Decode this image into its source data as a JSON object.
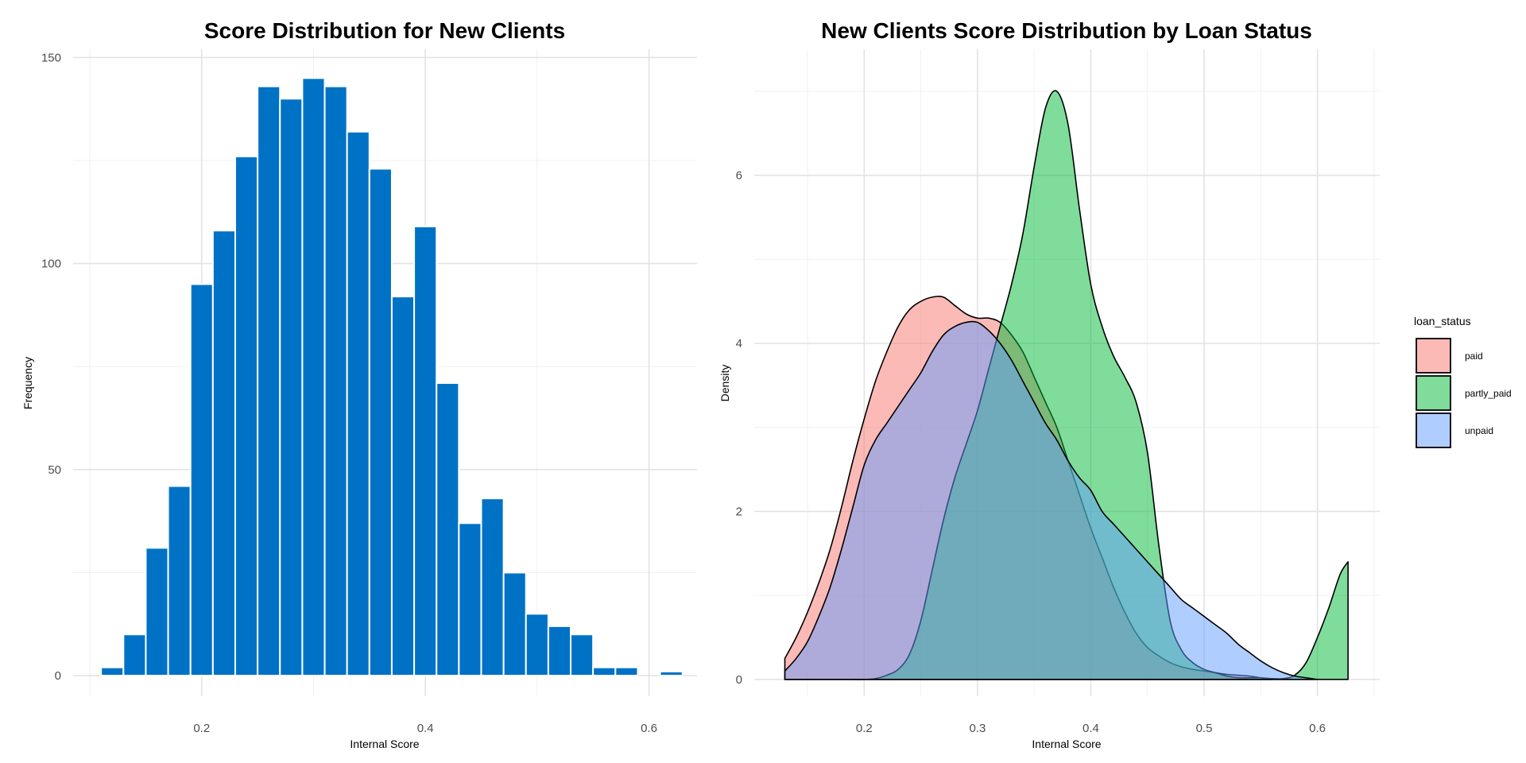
{
  "chart_data": [
    {
      "type": "bar",
      "subtype": "histogram",
      "title": "Score Distribution for New Clients",
      "xlabel": "Internal Score",
      "ylabel": "Frequency",
      "xlim": [
        0.085,
        0.643
      ],
      "ylim": [
        -5,
        152
      ],
      "xticks": [
        0.2,
        0.4,
        0.6
      ],
      "xtick_labels": [
        "0.2",
        "0.4",
        "0.6"
      ],
      "yticks": [
        0,
        50,
        100,
        150
      ],
      "ytick_labels": [
        "0",
        "50",
        "100",
        "150"
      ],
      "bin_width": 0.02,
      "bin_centers": [
        0.12,
        0.14,
        0.16,
        0.18,
        0.2,
        0.22,
        0.24,
        0.26,
        0.28,
        0.3,
        0.32,
        0.34,
        0.36,
        0.38,
        0.4,
        0.42,
        0.44,
        0.46,
        0.48,
        0.5,
        0.52,
        0.54,
        0.56,
        0.58,
        0.6,
        0.62
      ],
      "values": [
        2,
        10,
        31,
        46,
        95,
        108,
        126,
        143,
        140,
        145,
        143,
        132,
        123,
        92,
        109,
        71,
        37,
        43,
        25,
        15,
        12,
        10,
        2,
        2,
        0,
        1
      ],
      "grid": true,
      "colors": {
        "bar": "#0072C6",
        "edge": "#ffffff"
      }
    },
    {
      "type": "area",
      "subtype": "density",
      "title": "New Clients Score Distribution by Loan Status",
      "xlabel": "Internal Score",
      "ylabel": "Density",
      "xlim": [
        0.103,
        0.655
      ],
      "ylim": [
        -0.2,
        7.5
      ],
      "xticks": [
        0.2,
        0.3,
        0.4,
        0.5,
        0.6
      ],
      "xtick_labels": [
        "0.2",
        "0.3",
        "0.4",
        "0.5",
        "0.6"
      ],
      "yticks": [
        0,
        2,
        4,
        6
      ],
      "ytick_labels": [
        "0",
        "2",
        "4",
        "6"
      ],
      "legend_title": "loan_status",
      "legend_position": "right",
      "grid": true,
      "series": [
        {
          "name": "paid",
          "color": "#F8766D",
          "x": [
            0.13,
            0.14,
            0.15,
            0.16,
            0.17,
            0.18,
            0.19,
            0.2,
            0.21,
            0.22,
            0.23,
            0.24,
            0.25,
            0.26,
            0.27,
            0.28,
            0.29,
            0.3,
            0.31,
            0.32,
            0.33,
            0.34,
            0.35,
            0.36,
            0.37,
            0.38,
            0.39,
            0.4,
            0.41,
            0.42,
            0.43,
            0.44,
            0.45,
            0.46,
            0.47,
            0.48,
            0.49,
            0.5,
            0.51,
            0.52,
            0.53,
            0.54,
            0.55,
            0.56
          ],
          "y": [
            0.25,
            0.5,
            0.8,
            1.15,
            1.55,
            2.05,
            2.6,
            3.1,
            3.55,
            3.9,
            4.2,
            4.4,
            4.5,
            4.55,
            4.55,
            4.45,
            4.35,
            4.3,
            4.3,
            4.25,
            4.1,
            3.9,
            3.6,
            3.3,
            3.0,
            2.6,
            2.2,
            1.8,
            1.45,
            1.1,
            0.8,
            0.55,
            0.38,
            0.28,
            0.2,
            0.15,
            0.12,
            0.1,
            0.08,
            0.06,
            0.05,
            0.04,
            0.02,
            0.0
          ]
        },
        {
          "name": "partly_paid",
          "color": "#00BA38",
          "x": [
            0.13,
            0.14,
            0.15,
            0.16,
            0.17,
            0.18,
            0.19,
            0.2,
            0.21,
            0.22,
            0.23,
            0.24,
            0.25,
            0.26,
            0.27,
            0.28,
            0.29,
            0.3,
            0.31,
            0.32,
            0.33,
            0.34,
            0.35,
            0.36,
            0.37,
            0.38,
            0.39,
            0.4,
            0.41,
            0.42,
            0.43,
            0.44,
            0.45,
            0.46,
            0.47,
            0.48,
            0.49,
            0.5,
            0.51,
            0.52,
            0.53,
            0.54,
            0.55,
            0.56,
            0.57,
            0.58,
            0.59,
            0.6,
            0.61,
            0.62,
            0.627
          ],
          "y": [
            0,
            0,
            0,
            0,
            0,
            0,
            0,
            0,
            0.01,
            0.05,
            0.12,
            0.3,
            0.7,
            1.3,
            1.9,
            2.4,
            2.8,
            3.2,
            3.7,
            4.2,
            4.7,
            5.3,
            6.1,
            6.8,
            7.0,
            6.6,
            5.6,
            4.7,
            4.2,
            3.85,
            3.6,
            3.3,
            2.7,
            1.6,
            0.7,
            0.35,
            0.2,
            0.12,
            0.08,
            0.04,
            0.02,
            0.02,
            0.02,
            0.01,
            0.01,
            0.05,
            0.2,
            0.5,
            0.85,
            1.25,
            1.4
          ]
        },
        {
          "name": "unpaid",
          "color": "#619CFF",
          "x": [
            0.13,
            0.14,
            0.15,
            0.16,
            0.17,
            0.18,
            0.19,
            0.2,
            0.21,
            0.22,
            0.23,
            0.24,
            0.25,
            0.26,
            0.27,
            0.28,
            0.29,
            0.3,
            0.31,
            0.32,
            0.33,
            0.34,
            0.35,
            0.36,
            0.37,
            0.38,
            0.39,
            0.4,
            0.41,
            0.42,
            0.43,
            0.44,
            0.45,
            0.46,
            0.47,
            0.48,
            0.49,
            0.5,
            0.51,
            0.52,
            0.53,
            0.54,
            0.55,
            0.56,
            0.57,
            0.58,
            0.59,
            0.6
          ],
          "y": [
            0.1,
            0.25,
            0.45,
            0.75,
            1.1,
            1.55,
            2.05,
            2.55,
            2.85,
            3.05,
            3.25,
            3.45,
            3.65,
            3.9,
            4.1,
            4.2,
            4.25,
            4.25,
            4.15,
            4.0,
            3.8,
            3.55,
            3.3,
            3.05,
            2.85,
            2.6,
            2.4,
            2.25,
            2.0,
            1.85,
            1.7,
            1.55,
            1.4,
            1.25,
            1.1,
            0.95,
            0.85,
            0.75,
            0.65,
            0.55,
            0.42,
            0.32,
            0.22,
            0.14,
            0.08,
            0.04,
            0.02,
            0.0
          ]
        }
      ]
    }
  ]
}
